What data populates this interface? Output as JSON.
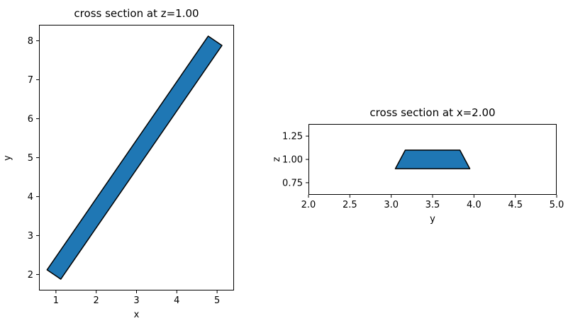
{
  "figure": {
    "background": "#ffffff",
    "fill_color": "#1f77b4",
    "edge_color": "#000000"
  },
  "chart_data": [
    {
      "type": "area",
      "title": "cross section at z=1.00",
      "xlabel": "x",
      "ylabel": "y",
      "xlim": [
        0.58,
        5.42
      ],
      "ylim": [
        1.59,
        8.41
      ],
      "grid": false,
      "legend": "none",
      "xticks": [
        {
          "v": 1,
          "l": "1"
        },
        {
          "v": 2,
          "l": "2"
        },
        {
          "v": 3,
          "l": "3"
        },
        {
          "v": 4,
          "l": "4"
        },
        {
          "v": 5,
          "l": "5"
        }
      ],
      "yticks": [
        {
          "v": 2,
          "l": "2"
        },
        {
          "v": 3,
          "l": "3"
        },
        {
          "v": 4,
          "l": "4"
        },
        {
          "v": 5,
          "l": "5"
        },
        {
          "v": 6,
          "l": "6"
        },
        {
          "v": 7,
          "l": "7"
        },
        {
          "v": 8,
          "l": "8"
        }
      ],
      "polygon": [
        [
          0.78,
          2.12
        ],
        [
          4.78,
          8.12
        ],
        [
          5.12,
          7.88
        ],
        [
          1.12,
          1.88
        ]
      ]
    },
    {
      "type": "area",
      "title": "cross section at x=2.00",
      "xlabel": "y",
      "ylabel": "z",
      "xlim": [
        2.0,
        5.0
      ],
      "ylim": [
        0.62,
        1.38
      ],
      "grid": false,
      "legend": "none",
      "xticks": [
        {
          "v": 2.0,
          "l": "2.0"
        },
        {
          "v": 2.5,
          "l": "2.5"
        },
        {
          "v": 3.0,
          "l": "3.0"
        },
        {
          "v": 3.5,
          "l": "3.5"
        },
        {
          "v": 4.0,
          "l": "4.0"
        },
        {
          "v": 4.5,
          "l": "4.5"
        },
        {
          "v": 5.0,
          "l": "5.0"
        }
      ],
      "yticks": [
        {
          "v": 0.75,
          "l": "0.75"
        },
        {
          "v": 1.0,
          "l": "1.00"
        },
        {
          "v": 1.25,
          "l": "1.25"
        }
      ],
      "polygon": [
        [
          3.05,
          0.9
        ],
        [
          3.95,
          0.9
        ],
        [
          3.83,
          1.1
        ],
        [
          3.17,
          1.1
        ]
      ]
    }
  ]
}
